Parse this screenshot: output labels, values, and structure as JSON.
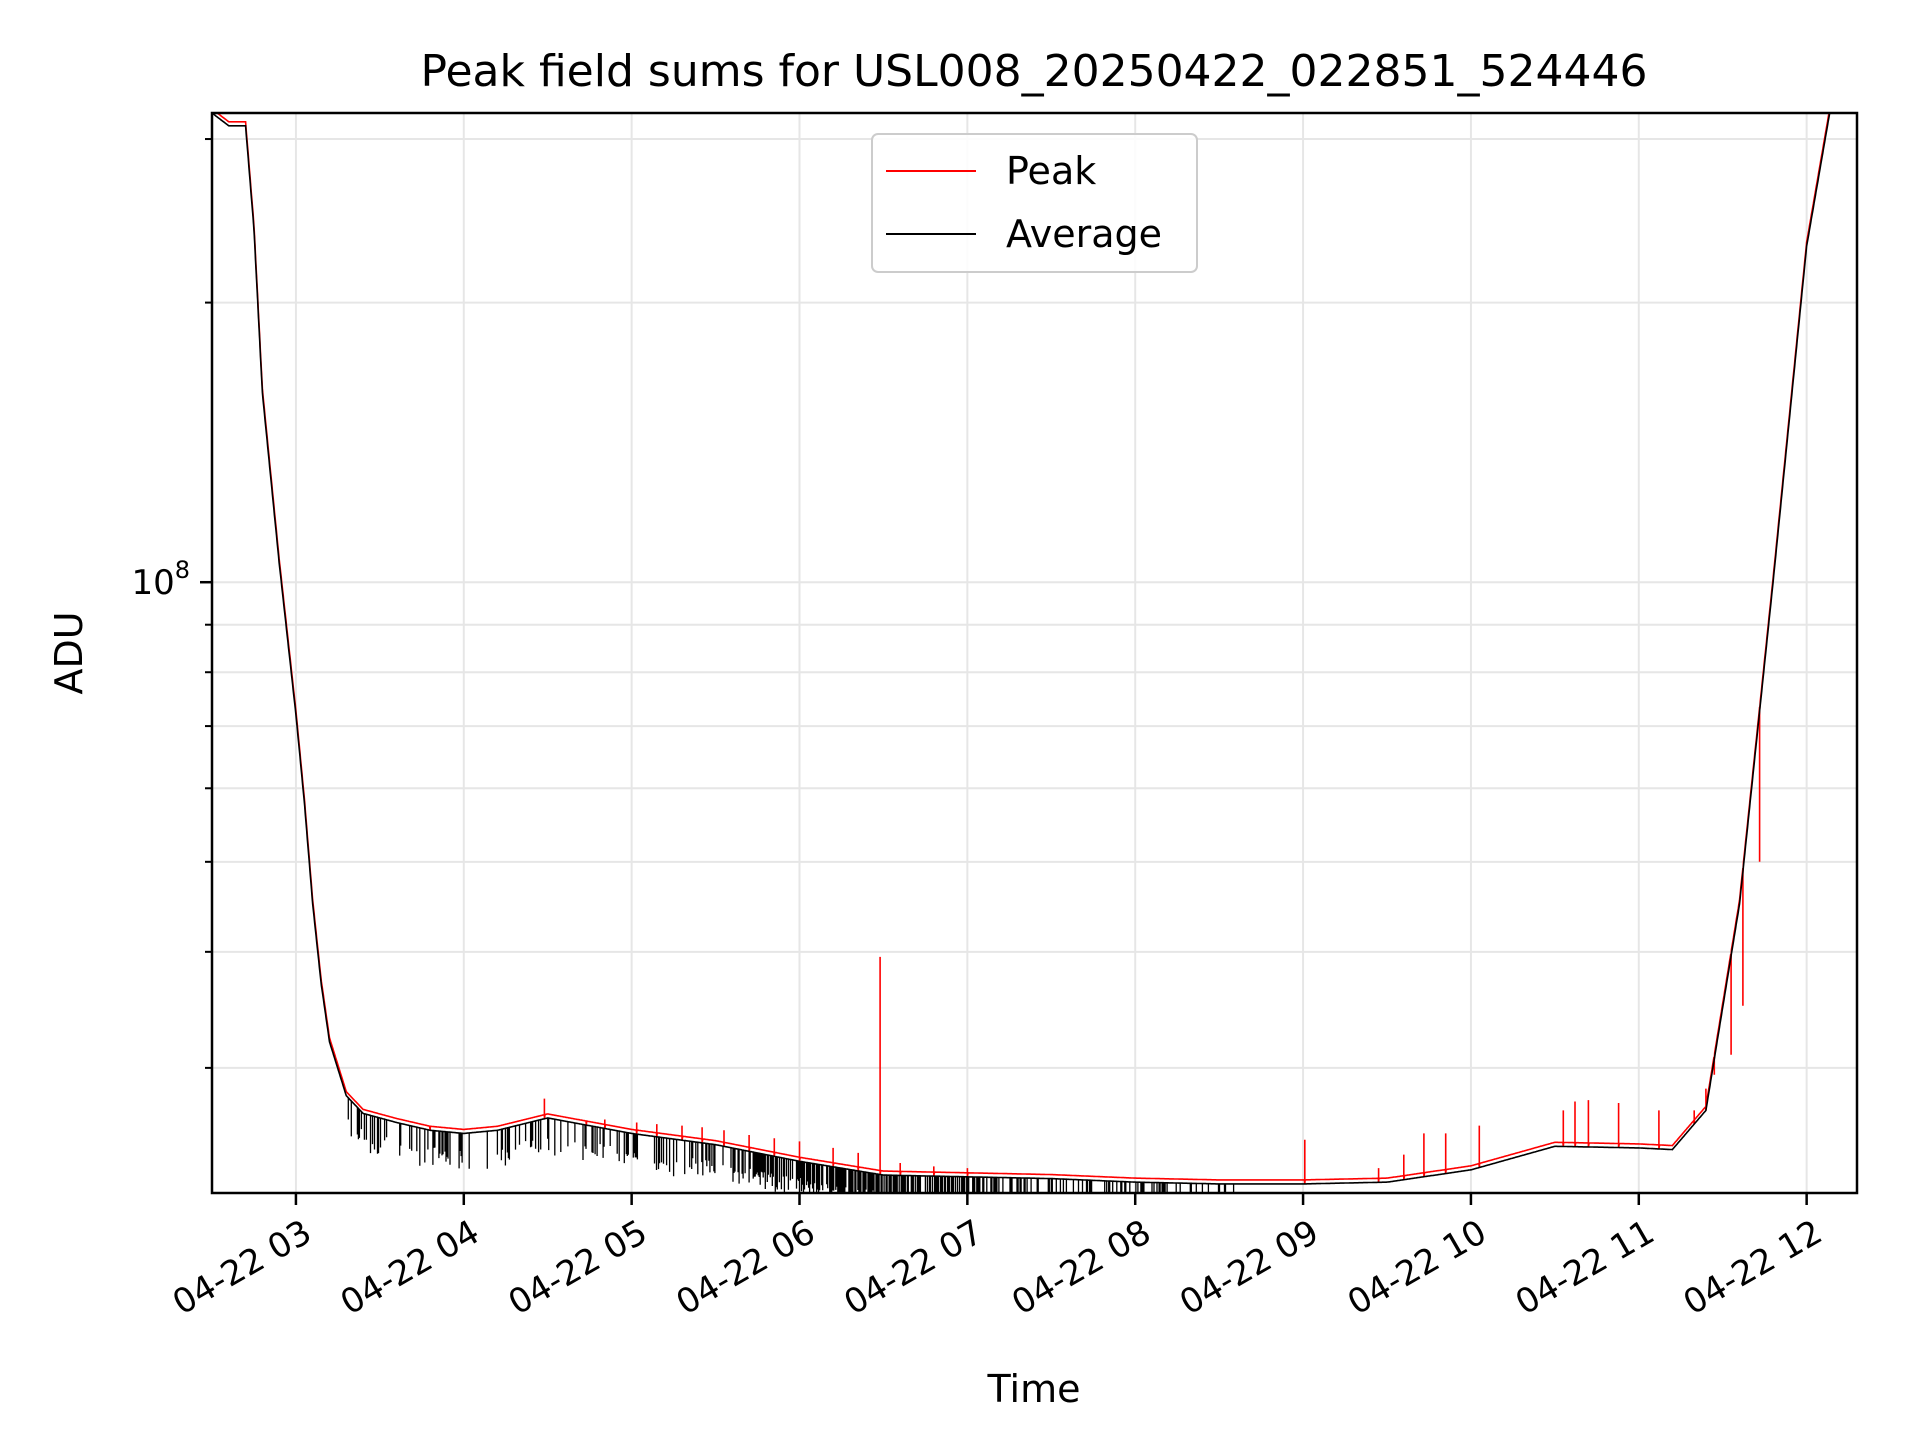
{
  "chart_data": {
    "type": "line",
    "title": "Peak field sums for USL008_20250422_022851_524446",
    "xlabel": "Time",
    "ylabel": "ADU",
    "x_unit": "hours since 2025-04-22 00:00 (axis shows MM-DD HH)",
    "xlim": [
      2.5,
      12.3
    ],
    "ylim": [
      22000000,
      320000000
    ],
    "yscale": "log",
    "grid": true,
    "legend_position": "top-center",
    "x_ticks": [
      {
        "value": 3,
        "label": "04-22 03"
      },
      {
        "value": 4,
        "label": "04-22 04"
      },
      {
        "value": 5,
        "label": "04-22 05"
      },
      {
        "value": 6,
        "label": "04-22 06"
      },
      {
        "value": 7,
        "label": "04-22 07"
      },
      {
        "value": 8,
        "label": "04-22 08"
      },
      {
        "value": 9,
        "label": "04-22 09"
      },
      {
        "value": 10,
        "label": "04-22 10"
      },
      {
        "value": 11,
        "label": "04-22 11"
      },
      {
        "value": 12,
        "label": "04-22 12"
      }
    ],
    "y_major_ticks": [
      {
        "value": 100000000,
        "base": "10",
        "exponent": "8"
      }
    ],
    "y_minor_ticks": [
      30000000,
      40000000,
      50000000,
      60000000,
      70000000,
      80000000,
      90000000,
      200000000,
      300000000
    ],
    "series": [
      {
        "name": "Average",
        "color": "#000000",
        "x": [
          2.5,
          2.6,
          2.7,
          2.75,
          2.8,
          2.9,
          3.0,
          3.05,
          3.1,
          3.15,
          3.2,
          3.3,
          3.4,
          3.6,
          3.8,
          4.0,
          4.2,
          4.5,
          5.0,
          5.5,
          6.0,
          6.5,
          7.0,
          7.5,
          8.0,
          8.5,
          9.0,
          9.5,
          10.0,
          10.5,
          11.0,
          11.2,
          11.4,
          11.6,
          11.8,
          12.0,
          12.15
        ],
        "y": [
          320000000,
          310000000,
          310000000,
          240000000,
          160000000,
          105000000,
          72000000,
          58000000,
          45000000,
          37000000,
          32000000,
          28000000,
          26800000,
          26200000,
          25700000,
          25500000,
          25700000,
          26500000,
          25500000,
          24800000,
          23800000,
          23000000,
          22900000,
          22800000,
          22600000,
          22500000,
          22500000,
          22600000,
          23300000,
          24700000,
          24600000,
          24500000,
          27000000,
          45000000,
          100000000,
          230000000,
          330000000
        ]
      },
      {
        "name": "Peak",
        "color": "#ff0000",
        "spikes": [
          {
            "x": 3.8,
            "y": 25700000
          },
          {
            "x": 4.48,
            "y": 27800000
          },
          {
            "x": 4.73,
            "y": 26300000
          },
          {
            "x": 4.84,
            "y": 26400000
          },
          {
            "x": 5.03,
            "y": 26200000
          },
          {
            "x": 5.15,
            "y": 26100000
          },
          {
            "x": 5.3,
            "y": 26000000
          },
          {
            "x": 5.42,
            "y": 25900000
          },
          {
            "x": 5.55,
            "y": 25700000
          },
          {
            "x": 5.7,
            "y": 25400000
          },
          {
            "x": 5.85,
            "y": 25200000
          },
          {
            "x": 6.0,
            "y": 25000000
          },
          {
            "x": 6.2,
            "y": 24600000
          },
          {
            "x": 6.35,
            "y": 24300000
          },
          {
            "x": 6.48,
            "y": 39500000
          },
          {
            "x": 6.6,
            "y": 23700000
          },
          {
            "x": 6.8,
            "y": 23500000
          },
          {
            "x": 7.0,
            "y": 23400000
          },
          {
            "x": 9.01,
            "y": 25100000
          },
          {
            "x": 9.45,
            "y": 23400000
          },
          {
            "x": 9.6,
            "y": 24200000
          },
          {
            "x": 9.72,
            "y": 25500000
          },
          {
            "x": 9.85,
            "y": 25500000
          },
          {
            "x": 10.05,
            "y": 26000000
          },
          {
            "x": 10.55,
            "y": 27000000
          },
          {
            "x": 10.62,
            "y": 27600000
          },
          {
            "x": 10.7,
            "y": 27700000
          },
          {
            "x": 10.88,
            "y": 27500000
          },
          {
            "x": 11.12,
            "y": 27000000
          },
          {
            "x": 11.33,
            "y": 27000000
          },
          {
            "x": 11.4,
            "y": 28500000
          },
          {
            "x": 11.45,
            "y": 29500000
          },
          {
            "x": 11.55,
            "y": 31000000
          },
          {
            "x": 11.62,
            "y": 35000000
          },
          {
            "x": 11.72,
            "y": 50000000
          }
        ]
      }
    ]
  }
}
